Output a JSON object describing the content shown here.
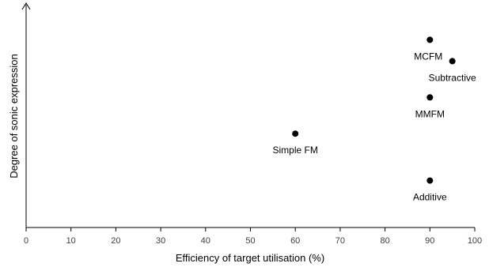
{
  "chart_data": {
    "type": "scatter",
    "title": "",
    "xlabel": "Efficiency of target utilisation (%)",
    "ylabel": "Degree of sonic expression",
    "xlim": [
      0,
      100
    ],
    "ylim": [
      0,
      100
    ],
    "xticks": [
      0,
      10,
      20,
      30,
      40,
      50,
      60,
      70,
      80,
      90,
      100
    ],
    "yticks": [],
    "grid": false,
    "legend": "none",
    "marker_color": "#000000",
    "points": [
      {
        "label": "MCFM",
        "x": 90,
        "y": 88,
        "label_pos": "below-left"
      },
      {
        "label": "Subtractive",
        "x": 95,
        "y": 78,
        "label_pos": "below"
      },
      {
        "label": "MMFM",
        "x": 90,
        "y": 61,
        "label_pos": "below"
      },
      {
        "label": "Simple FM",
        "x": 60,
        "y": 44,
        "label_pos": "below"
      },
      {
        "label": "Additive",
        "x": 90,
        "y": 22,
        "label_pos": "below"
      }
    ]
  }
}
